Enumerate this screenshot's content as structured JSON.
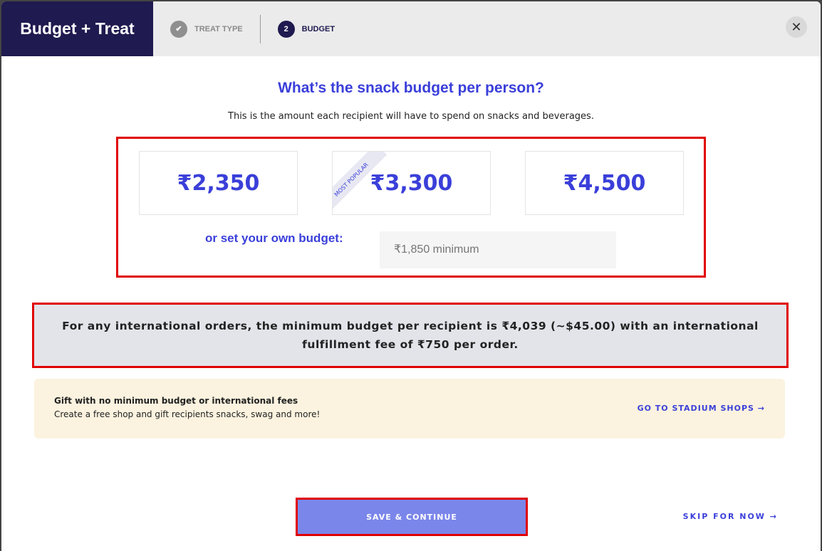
{
  "header": {
    "title": "Budget + Treat",
    "steps": [
      {
        "label": "TREAT TYPE",
        "marker": "check-icon"
      },
      {
        "label": "BUDGET",
        "number": "2"
      }
    ],
    "close_icon": "close-icon"
  },
  "main": {
    "heading": "What’s the snack budget per person?",
    "subtitle": "This is the amount each recipient will have to spend on snacks and beverages.",
    "options": [
      {
        "amount": "₹2,350"
      },
      {
        "amount": "₹3,300",
        "badge": "MOST POPULAR"
      },
      {
        "amount": "₹4,500"
      }
    ],
    "own_label": "or set your own budget:",
    "own_placeholder": "₹1,850 minimum",
    "intl_notice": "For any international orders, the minimum budget per recipient is ₹4,039 (~$45.00) with an international fulfillment fee of  ₹750 per order.",
    "gift": {
      "title": "Gift with no minimum budget or international fees",
      "text": "Create a free shop and gift recipients snacks, swag and more!",
      "link": "GO TO STADIUM SHOPS →"
    }
  },
  "footer": {
    "save": "SAVE & CONTINUE",
    "skip": "SKIP FOR NOW →"
  },
  "colors": {
    "accent": "#3a3fd9",
    "brand": "#1f1a4f",
    "highlight": "#e00000"
  }
}
